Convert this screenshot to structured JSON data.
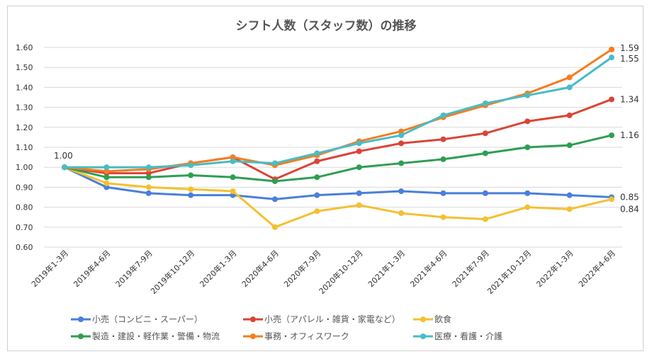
{
  "chart_data": {
    "type": "line",
    "title": "シフト人数（スタッフ数）の推移",
    "xlabel": "",
    "ylabel": "",
    "ylim": [
      0.6,
      1.6
    ],
    "yticks": [
      "0.60",
      "0.70",
      "0.80",
      "0.90",
      "1.00",
      "1.10",
      "1.20",
      "1.30",
      "1.40",
      "1.50",
      "1.60"
    ],
    "grid": true,
    "legend_position": "bottom",
    "categories": [
      "2019年1-3月",
      "2019年4-6月",
      "2019年7-9月",
      "2019年10-12月",
      "2020年1-3月",
      "2020年4-6月",
      "2020年7-9月",
      "2020年10-12月",
      "2021年1-3月",
      "2021年4-6月",
      "2021年7-9月",
      "2021年10-12月",
      "2022年1-3月",
      "2022年4-6月"
    ],
    "series": [
      {
        "name": "小売（コンビニ・スーパー）",
        "color": "#4a7fdb",
        "values": [
          1.0,
          0.9,
          0.87,
          0.86,
          0.86,
          0.84,
          0.86,
          0.87,
          0.88,
          0.87,
          0.87,
          0.87,
          0.86,
          0.85
        ],
        "end_label": "0.85"
      },
      {
        "name": "小売（アパレル・雑貨・家電など）",
        "color": "#db4437",
        "values": [
          1.0,
          0.97,
          0.97,
          1.02,
          1.05,
          0.94,
          1.03,
          1.08,
          1.12,
          1.14,
          1.17,
          1.23,
          1.26,
          1.34
        ],
        "end_label": "1.34"
      },
      {
        "name": "飲食",
        "color": "#f4c031",
        "values": [
          1.0,
          0.92,
          0.9,
          0.89,
          0.88,
          0.7,
          0.78,
          0.81,
          0.77,
          0.75,
          0.74,
          0.8,
          0.79,
          0.84
        ],
        "end_label": "0.84"
      },
      {
        "name": "製造・建設・軽作業・警備・物流",
        "color": "#2e9e52",
        "values": [
          1.0,
          0.95,
          0.95,
          0.96,
          0.95,
          0.93,
          0.95,
          1.0,
          1.02,
          1.04,
          1.07,
          1.1,
          1.11,
          1.16
        ],
        "end_label": "1.16"
      },
      {
        "name": "事務・オフィスワーク",
        "color": "#f57c1f",
        "values": [
          1.0,
          0.98,
          0.99,
          1.02,
          1.05,
          1.01,
          1.06,
          1.13,
          1.18,
          1.25,
          1.31,
          1.37,
          1.45,
          1.59
        ],
        "end_label": "1.59"
      },
      {
        "name": "医療・看護・介護",
        "color": "#47bdc6",
        "values": [
          1.0,
          1.0,
          1.0,
          1.01,
          1.03,
          1.02,
          1.07,
          1.12,
          1.16,
          1.26,
          1.32,
          1.36,
          1.4,
          1.55
        ],
        "end_label": "1.55"
      }
    ],
    "start_label": "1.00"
  }
}
